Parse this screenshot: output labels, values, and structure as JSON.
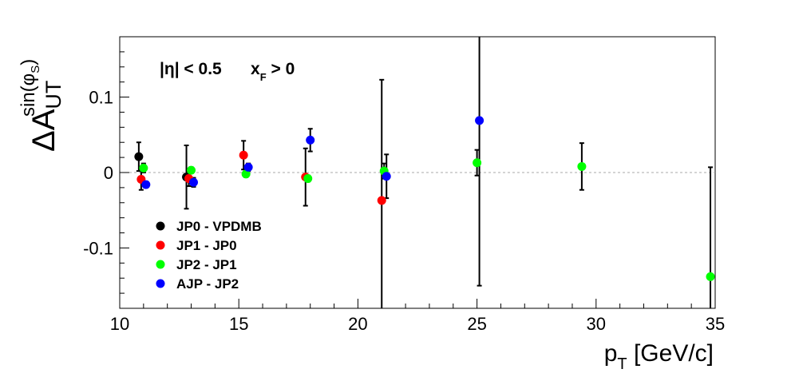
{
  "chart_data": {
    "type": "scatter",
    "title": "",
    "xlabel": "p",
    "xlabel_sub": "T",
    "xlabel_unit": " [GeV/c]",
    "ylabel": "ΔA",
    "ylabel_sub": "UT",
    "ylabel_sup": "sin(φ",
    "ylabel_sup_sub": "S",
    "ylabel_sup_close": ")",
    "xlim": [
      10,
      35
    ],
    "ylim": [
      -0.18,
      0.18
    ],
    "x_ticks": [
      10,
      15,
      20,
      25,
      30,
      35
    ],
    "x_tick_labels": [
      "10",
      "15",
      "20",
      "25",
      "30",
      "35"
    ],
    "y_ticks": [
      -0.1,
      0,
      0.1
    ],
    "y_tick_labels": [
      "-0.1",
      "0",
      "0.1"
    ],
    "grid": false,
    "zero_line": true,
    "annotation": {
      "eta": "|η| < 0.5",
      "xf_main": "x",
      "xf_sub": "F",
      "xf_rest": " > 0"
    },
    "legend_position": "bottom-left",
    "series": [
      {
        "name": "JP0 - VPDMB",
        "color": "#000000",
        "points": [
          {
            "x": 10.8,
            "y": 0.021,
            "err": 0.019
          },
          {
            "x": 12.8,
            "y": -0.006,
            "err": 0.042
          }
        ]
      },
      {
        "name": "JP1 - JP0",
        "color": "#ff0000",
        "points": [
          {
            "x": 10.9,
            "y": -0.009,
            "err": 0.014
          },
          {
            "x": 12.9,
            "y": -0.008,
            "err": 0.01
          },
          {
            "x": 15.2,
            "y": 0.023,
            "err": 0.019
          },
          {
            "x": 17.8,
            "y": -0.006,
            "err": 0.038
          },
          {
            "x": 21.0,
            "y": -0.037,
            "err": 0.16
          }
        ]
      },
      {
        "name": "JP2 - JP1",
        "color": "#00ff00",
        "points": [
          {
            "x": 11.0,
            "y": 0.006,
            "err": 0.006
          },
          {
            "x": 13.0,
            "y": 0.003,
            "err": 0.004
          },
          {
            "x": 15.3,
            "y": -0.002,
            "err": 0.004
          },
          {
            "x": 17.9,
            "y": -0.008,
            "err": 0.004
          },
          {
            "x": 21.1,
            "y": 0.002,
            "err": 0.01
          },
          {
            "x": 25.0,
            "y": 0.013,
            "err": 0.017
          },
          {
            "x": 29.4,
            "y": 0.008,
            "err": 0.031
          },
          {
            "x": 34.8,
            "y": -0.138,
            "err": 0.145
          }
        ]
      },
      {
        "name": "AJP - JP2",
        "color": "#0000ff",
        "points": [
          {
            "x": 11.1,
            "y": -0.016,
            "err": 0.004
          },
          {
            "x": 13.1,
            "y": -0.013,
            "err": 0.006
          },
          {
            "x": 15.4,
            "y": 0.007,
            "err": 0.005
          },
          {
            "x": 18.0,
            "y": 0.043,
            "err": 0.015
          },
          {
            "x": 21.2,
            "y": -0.005,
            "err": 0.029
          },
          {
            "x": 25.1,
            "y": 0.069,
            "err": 0.219
          }
        ]
      }
    ]
  }
}
